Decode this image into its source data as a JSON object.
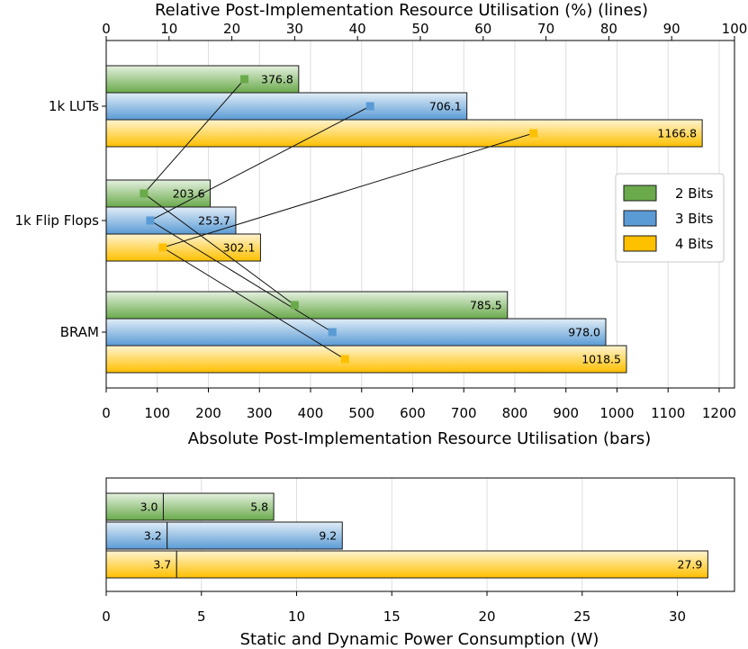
{
  "chart_data": [
    {
      "type": "bar",
      "orientation": "horizontal",
      "title": "",
      "top_axis_label": "Relative Post-Implementation Resource Utilisation (%) (lines)",
      "xlabel": "Absolute Post-Implementation Resource Utilisation (bars)",
      "xlim": [
        0,
        1230
      ],
      "x_ticks": [
        0,
        100,
        200,
        300,
        400,
        500,
        600,
        700,
        800,
        900,
        1000,
        1100,
        1200
      ],
      "top_lim": [
        0,
        100
      ],
      "top_ticks": [
        0,
        10,
        20,
        30,
        40,
        50,
        60,
        70,
        80,
        90,
        100
      ],
      "categories": [
        "1k LUTs",
        "1k Flip Flops",
        "BRAM"
      ],
      "grid": true,
      "legend_position": "right",
      "series": [
        {
          "name": "2 Bits",
          "color": "#6aaa4b",
          "values": [
            376.8,
            203.6,
            785.5
          ],
          "labels": [
            "376.8",
            "203.6",
            "785.5"
          ],
          "relative_percent": [
            22.0,
            6.0,
            30.0
          ]
        },
        {
          "name": "3 Bits",
          "color": "#5b9bd5",
          "values": [
            706.1,
            253.7,
            978.0
          ],
          "labels": [
            "706.1",
            "253.7",
            "978.0"
          ],
          "relative_percent": [
            42.0,
            7.0,
            36.0
          ]
        },
        {
          "name": "4 Bits",
          "color": "#ffc000",
          "values": [
            1166.8,
            302.1,
            1018.5
          ],
          "labels": [
            "1166.8",
            "302.1",
            "1018.5"
          ],
          "relative_percent": [
            68.0,
            9.0,
            38.0
          ]
        }
      ]
    },
    {
      "type": "bar",
      "orientation": "horizontal",
      "stacked": true,
      "xlabel": "Static and Dynamic Power Consumption (W)",
      "xlim": [
        0,
        33
      ],
      "x_ticks": [
        0,
        5,
        10,
        15,
        20,
        25,
        30
      ],
      "grid": true,
      "series": [
        {
          "name": "2 Bits",
          "color": "#6aaa4b",
          "static": 3.0,
          "dynamic": 5.8,
          "static_label": "3.0",
          "dynamic_label": "5.8"
        },
        {
          "name": "3 Bits",
          "color": "#5b9bd5",
          "static": 3.2,
          "dynamic": 9.2,
          "static_label": "3.2",
          "dynamic_label": "9.2"
        },
        {
          "name": "4 Bits",
          "color": "#ffc000",
          "static": 3.7,
          "dynamic": 27.9,
          "static_label": "3.7",
          "dynamic_label": "27.9"
        }
      ]
    }
  ]
}
